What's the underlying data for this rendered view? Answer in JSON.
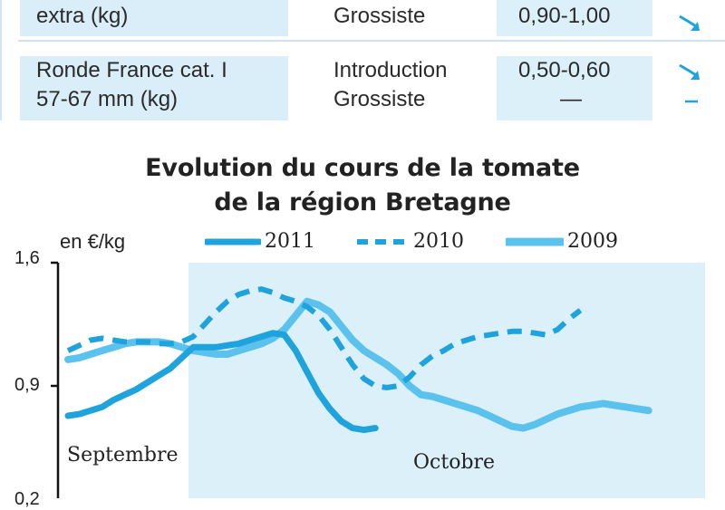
{
  "table": {
    "rows": [
      {
        "product": [
          "extra (kg)"
        ],
        "stage": [
          "Grossiste"
        ],
        "price": [
          "0,90-1,00"
        ],
        "trend": [
          "down"
        ]
      },
      {
        "product": [
          "Ronde France cat. I",
          "57-67 mm (kg)"
        ],
        "stage": [
          "Introduction",
          "Grossiste"
        ],
        "price": [
          "0,50-0,60",
          "—"
        ],
        "trend": [
          "down",
          "stable"
        ]
      }
    ]
  },
  "chart_data": {
    "type": "line",
    "title": "Evolution du cours de la tomate de la région Bretagne",
    "title_lines": [
      "Evolution du cours de la tomate",
      "de la région Bretagne"
    ],
    "ylabel": "en €/kg",
    "yticks": [
      "1,6",
      "0,9",
      "0,2"
    ],
    "ylim": [
      0.2,
      1.6
    ],
    "month_labels": [
      "Septembre",
      "Octobre"
    ],
    "highlight_band": "Octobre",
    "x": [
      1,
      2,
      3,
      4,
      5,
      6,
      7,
      8,
      9,
      10,
      11,
      12,
      13,
      14,
      15,
      16,
      17,
      18,
      19,
      20,
      21,
      22,
      23,
      24,
      25,
      26,
      27,
      28,
      29,
      30,
      31,
      32,
      33,
      34,
      35,
      36,
      37,
      38,
      39,
      40,
      41,
      42,
      43,
      44,
      45,
      46,
      47,
      48,
      49,
      50,
      51,
      52,
      53,
      54,
      55,
      56
    ],
    "series": [
      {
        "name": "2011",
        "style": "solid-thick",
        "color": "#1ea3dc",
        "values": [
          0.73,
          0.74,
          0.76,
          0.78,
          0.82,
          0.85,
          0.88,
          0.92,
          0.96,
          1.0,
          1.06,
          1.12,
          1.12,
          1.12,
          1.13,
          1.14,
          1.16,
          1.18,
          1.2,
          1.19,
          1.1,
          0.98,
          0.86,
          0.77,
          0.7,
          0.66,
          0.65,
          0.66,
          null,
          null,
          null,
          null,
          null,
          null,
          null,
          null,
          null,
          null,
          null,
          null,
          null,
          null,
          null,
          null,
          null,
          null,
          null,
          null,
          null,
          null,
          null,
          null,
          null,
          null,
          null,
          null
        ]
      },
      {
        "name": "2010",
        "style": "dashed",
        "color": "#1ea3dc",
        "values": [
          1.1,
          1.13,
          1.16,
          1.17,
          1.16,
          1.15,
          1.15,
          1.15,
          1.14,
          1.14,
          1.15,
          1.18,
          1.25,
          1.32,
          1.38,
          1.42,
          1.44,
          1.45,
          1.43,
          1.4,
          1.38,
          1.35,
          1.3,
          1.22,
          1.12,
          1.02,
          0.94,
          0.9,
          0.89,
          0.9,
          0.95,
          1.02,
          1.07,
          1.1,
          1.14,
          1.16,
          1.18,
          1.19,
          1.2,
          1.21,
          1.21,
          1.2,
          1.19,
          1.22,
          1.28,
          1.33,
          null,
          null,
          null,
          null,
          null,
          null,
          null,
          null,
          null,
          null
        ]
      },
      {
        "name": "2009",
        "style": "solid-light",
        "color": "#5bc2ee",
        "values": [
          1.05,
          1.06,
          1.08,
          1.1,
          1.12,
          1.14,
          1.15,
          1.15,
          1.15,
          1.14,
          1.12,
          1.1,
          1.09,
          1.08,
          1.08,
          1.1,
          1.12,
          1.14,
          1.17,
          1.22,
          1.3,
          1.38,
          1.36,
          1.32,
          1.24,
          1.16,
          1.1,
          1.06,
          1.02,
          0.97,
          0.9,
          0.85,
          0.84,
          0.82,
          0.8,
          0.78,
          0.76,
          0.73,
          0.7,
          0.67,
          0.66,
          0.68,
          0.71,
          0.74,
          0.76,
          0.78,
          0.79,
          0.8,
          0.79,
          0.78,
          0.77,
          0.76,
          null,
          null,
          null,
          null
        ]
      }
    ],
    "grid": false,
    "legend_position": "top"
  }
}
